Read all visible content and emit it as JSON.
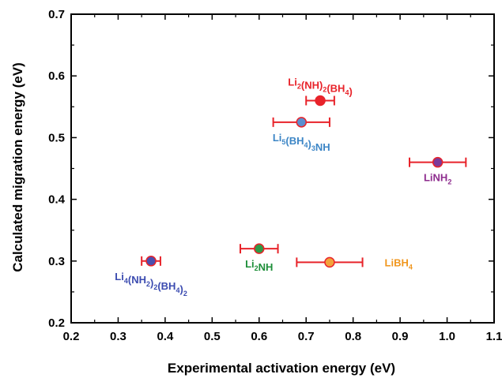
{
  "chart_data": {
    "type": "scatter",
    "xlabel": "Experimental activation energy (eV)",
    "ylabel": "Calculated migration energy (eV)",
    "xlim": [
      0.2,
      1.1
    ],
    "ylim": [
      0.2,
      0.7
    ],
    "xticks": [
      "0.2",
      "0.3",
      "0.4",
      "0.5",
      "0.6",
      "0.7",
      "0.8",
      "0.9",
      "1.0",
      "1.1"
    ],
    "yticks": [
      "0.2",
      "0.3",
      "0.4",
      "0.5",
      "0.6",
      "0.7"
    ],
    "grid": false,
    "points": [
      {
        "label": "Li2(NH)2(BH4)",
        "label_parts": [
          [
            "Li",
            ""
          ],
          [
            "2",
            "sub"
          ],
          [
            "(NH)",
            ""
          ],
          [
            "2",
            "sub"
          ],
          [
            "(BH",
            ""
          ],
          [
            "4",
            "sub"
          ],
          [
            ")",
            ""
          ]
        ],
        "x": 0.73,
        "y": 0.56,
        "xerr": 0.03,
        "fill": "#e8232a",
        "label_color": "#e8232a",
        "label_pos": "above"
      },
      {
        "label": "Li5(BH4)3NH",
        "label_parts": [
          [
            "Li",
            ""
          ],
          [
            "5",
            "sub"
          ],
          [
            "(BH",
            ""
          ],
          [
            "4",
            "sub"
          ],
          [
            ")",
            ""
          ],
          [
            "3",
            "sub"
          ],
          [
            "NH",
            ""
          ]
        ],
        "x": 0.69,
        "y": 0.525,
        "xerr": 0.06,
        "fill": "#5b8fd0",
        "label_color": "#3d86c6",
        "label_pos": "below"
      },
      {
        "label": "LiNH2",
        "label_parts": [
          [
            "LiNH",
            ""
          ],
          [
            "2",
            "sub"
          ]
        ],
        "x": 0.98,
        "y": 0.46,
        "xerr": 0.06,
        "fill": "#7b3a9a",
        "label_color": "#8e2c8e",
        "label_pos": "below"
      },
      {
        "label": "Li2NH",
        "label_parts": [
          [
            "Li",
            ""
          ],
          [
            "2",
            "sub"
          ],
          [
            "NH",
            ""
          ]
        ],
        "x": 0.6,
        "y": 0.32,
        "xerr": 0.04,
        "fill": "#2f9a48",
        "label_color": "#1f8f3a",
        "label_pos": "below"
      },
      {
        "label": "LiBH4",
        "label_parts": [
          [
            "LiBH",
            ""
          ],
          [
            "4",
            "sub"
          ]
        ],
        "x": 0.75,
        "y": 0.298,
        "xerr": 0.07,
        "fill": "#f3a23a",
        "label_color": "#f0961e",
        "label_pos": "right"
      },
      {
        "label": "Li4(NH2)2(BH4)2",
        "label_parts": [
          [
            "Li",
            ""
          ],
          [
            "4",
            "sub"
          ],
          [
            "(NH",
            ""
          ],
          [
            "2",
            "sub"
          ],
          [
            ")",
            ""
          ],
          [
            "2",
            "sub"
          ],
          [
            "(BH",
            ""
          ],
          [
            "4",
            "sub"
          ],
          [
            ")",
            ""
          ],
          [
            "2",
            "sub"
          ]
        ],
        "x": 0.37,
        "y": 0.3,
        "xerr": 0.02,
        "fill": "#4a4fb0",
        "label_color": "#3b4bb0",
        "label_pos": "below"
      }
    ],
    "errorbar_color": "#e8232a",
    "marker_edge_color": "#e8232a"
  }
}
